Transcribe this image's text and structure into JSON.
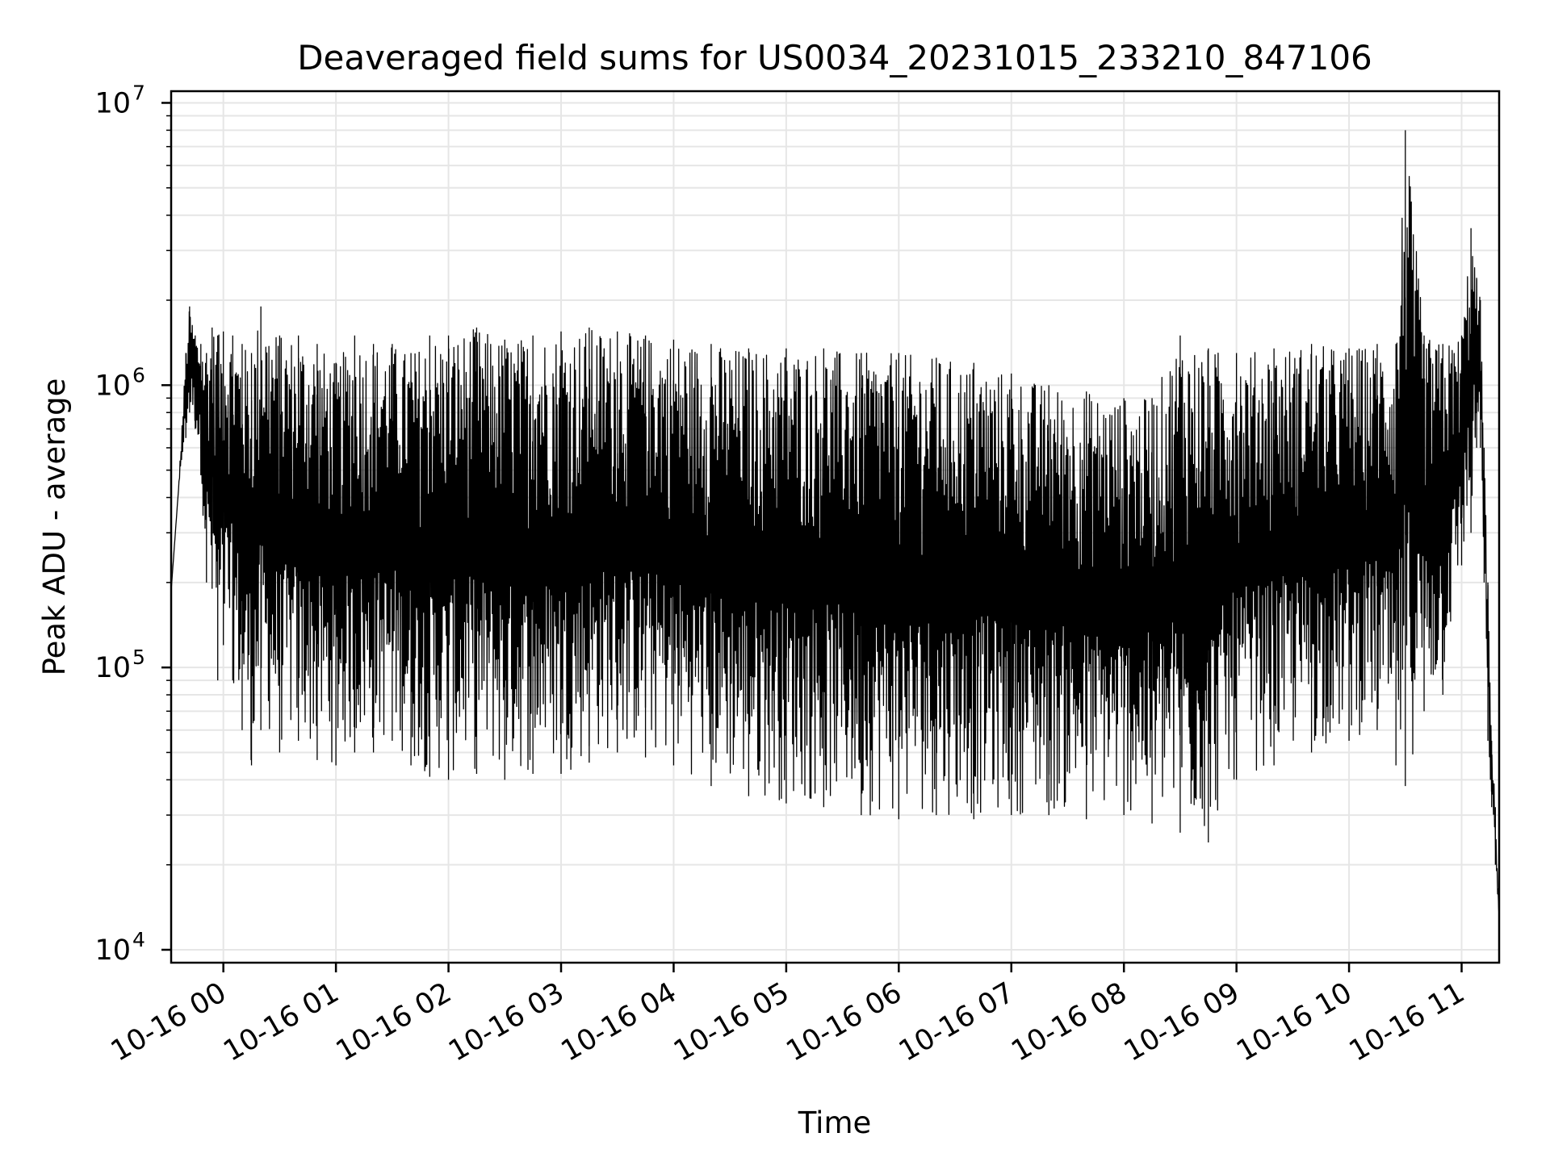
{
  "chart_data": {
    "type": "line",
    "title": "Deaveraged field sums for US0034_20231015_233210_847106",
    "xlabel": "Time",
    "ylabel": "Peak ADU - average",
    "yscale": "log",
    "ylim": [
      9000,
      11000000
    ],
    "xlim": [
      "2023-10-15 23:32:10",
      "2023-10-16 11:20:00"
    ],
    "grid": true,
    "line_color": "#000000",
    "grid_color": "#e6e6e6",
    "x_ticks": [
      {
        "t": "2023-10-16 00:00",
        "label": "10-16 00"
      },
      {
        "t": "2023-10-16 01:00",
        "label": "10-16 01"
      },
      {
        "t": "2023-10-16 02:00",
        "label": "10-16 02"
      },
      {
        "t": "2023-10-16 03:00",
        "label": "10-16 03"
      },
      {
        "t": "2023-10-16 04:00",
        "label": "10-16 04"
      },
      {
        "t": "2023-10-16 05:00",
        "label": "10-16 05"
      },
      {
        "t": "2023-10-16 06:00",
        "label": "10-16 06"
      },
      {
        "t": "2023-10-16 07:00",
        "label": "10-16 07"
      },
      {
        "t": "2023-10-16 08:00",
        "label": "10-16 08"
      },
      {
        "t": "2023-10-16 09:00",
        "label": "10-16 09"
      },
      {
        "t": "2023-10-16 10:00",
        "label": "10-16 10"
      },
      {
        "t": "2023-10-16 11:00",
        "label": "10-16 11"
      }
    ],
    "y_ticks": [
      {
        "value": 10000,
        "base": "10",
        "exp": "4"
      },
      {
        "value": 100000,
        "base": "10",
        "exp": "5"
      },
      {
        "value": 1000000,
        "base": "10",
        "exp": "6"
      },
      {
        "value": 10000000,
        "base": "10",
        "exp": "7"
      }
    ],
    "series": [
      {
        "x": [
          "2023-10-15 23:32",
          "2023-10-15 23:36",
          "2023-10-15 23:40",
          "2023-10-15 23:42",
          "2023-10-15 23:45",
          "2023-10-15 23:48",
          "2023-10-15 23:51",
          "2023-10-15 23:54",
          "2023-10-15 23:57",
          "2023-10-16 00:00",
          "2023-10-16 00:05",
          "2023-10-16 00:10",
          "2023-10-16 00:15",
          "2023-10-16 00:20",
          "2023-10-16 00:30",
          "2023-10-16 00:40",
          "2023-10-16 00:50",
          "2023-10-16 01:00",
          "2023-10-16 01:10",
          "2023-10-16 01:20",
          "2023-10-16 01:30",
          "2023-10-16 01:40",
          "2023-10-16 01:50",
          "2023-10-16 02:00",
          "2023-10-16 02:15",
          "2023-10-16 02:30",
          "2023-10-16 02:45",
          "2023-10-16 03:00",
          "2023-10-16 03:15",
          "2023-10-16 03:30",
          "2023-10-16 03:45",
          "2023-10-16 04:00",
          "2023-10-16 04:20",
          "2023-10-16 04:40",
          "2023-10-16 05:00",
          "2023-10-16 05:20",
          "2023-10-16 05:40",
          "2023-10-16 06:00",
          "2023-10-16 06:20",
          "2023-10-16 06:40",
          "2023-10-16 07:00",
          "2023-10-16 07:20",
          "2023-10-16 07:40",
          "2023-10-16 08:00",
          "2023-10-16 08:15",
          "2023-10-16 08:30",
          "2023-10-16 08:45",
          "2023-10-16 09:00",
          "2023-10-16 09:20",
          "2023-10-16 09:40",
          "2023-10-16 10:00",
          "2023-10-16 10:15",
          "2023-10-16 10:25",
          "2023-10-16 10:30",
          "2023-10-16 10:40",
          "2023-10-16 10:50",
          "2023-10-16 11:00",
          "2023-10-16 11:05",
          "2023-10-16 11:08",
          "2023-10-16 11:10",
          "2023-10-16 11:12",
          "2023-10-16 11:14",
          "2023-10-16 11:16",
          "2023-10-16 11:18",
          "2023-10-16 11:20"
        ],
        "peak": [
          180000,
          420000,
          1300000,
          1900000,
          1500000,
          1400000,
          1300000,
          1600000,
          1500000,
          1550000,
          1500000,
          1400000,
          1300000,
          1900000,
          1500000,
          1500000,
          1400000,
          1200000,
          1500000,
          1400000,
          1400000,
          1300000,
          1500000,
          1500000,
          1600000,
          1450000,
          1500000,
          1550000,
          1600000,
          1550000,
          1500000,
          1450000,
          1400000,
          1350000,
          1350000,
          1350000,
          1300000,
          1300000,
          1250000,
          1200000,
          1100000,
          1000000,
          950000,
          900000,
          900000,
          1500000,
          1350000,
          1300000,
          1350000,
          1400000,
          1350000,
          1400000,
          1400000,
          8000000,
          1500000,
          1400000,
          1500000,
          3600000,
          2400000,
          2000000,
          600000,
          200000,
          55000,
          32000,
          13000
        ],
        "trough": [
          180000,
          420000,
          650000,
          800000,
          700000,
          480000,
          200000,
          190000,
          90000,
          120000,
          90000,
          60000,
          45000,
          60000,
          50000,
          55000,
          47000,
          45000,
          50000,
          50000,
          55000,
          45000,
          41000,
          40000,
          42000,
          40000,
          42000,
          42000,
          46000,
          50000,
          48000,
          45000,
          38000,
          35000,
          33000,
          32000,
          30000,
          29000,
          30000,
          29000,
          30000,
          30000,
          29000,
          30000,
          28000,
          26000,
          24000,
          40000,
          45000,
          50000,
          55000,
          60000,
          45000,
          38000,
          70000,
          80000,
          230000,
          300000,
          600000,
          600000,
          200000,
          55000,
          32000,
          20000,
          13000
        ]
      }
    ]
  }
}
